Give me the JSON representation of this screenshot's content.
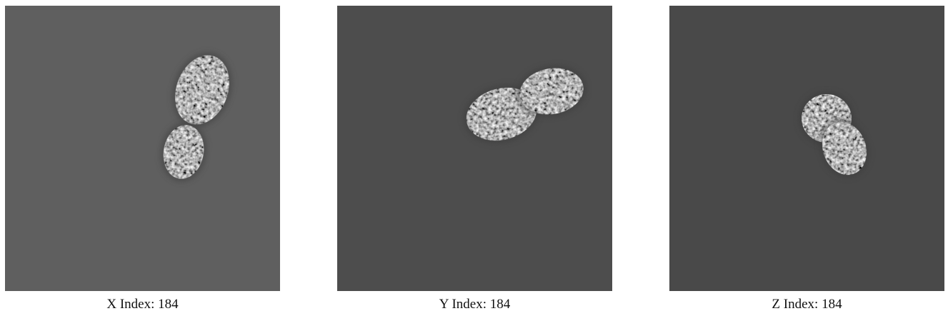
{
  "panels": [
    {
      "caption": "X Index: 184"
    },
    {
      "caption": "Y Index: 184"
    },
    {
      "caption": "Z Index: 184"
    }
  ]
}
